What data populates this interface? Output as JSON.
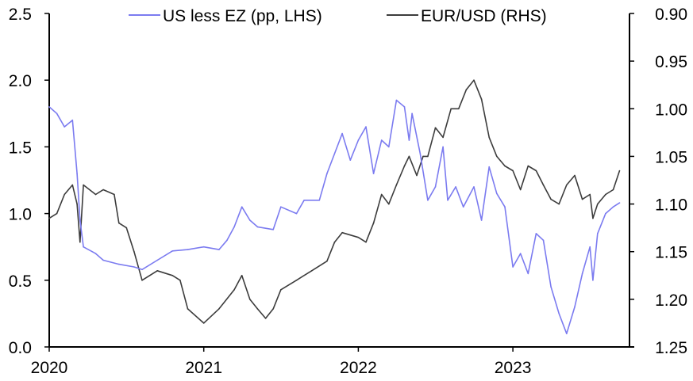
{
  "chart_data": {
    "type": "line",
    "title": "",
    "xlabel": "",
    "x_ticks": [
      "2020",
      "2021",
      "2022",
      "2023"
    ],
    "x_range": [
      "2020-01-01",
      "2023-10-15"
    ],
    "y_left": {
      "label": "",
      "range": [
        0,
        2.5
      ],
      "ticks": [
        "0.0",
        "0.5",
        "1.0",
        "1.5",
        "2.0",
        "2.5"
      ]
    },
    "y_right": {
      "label": "",
      "range": [
        0.9,
        1.25
      ],
      "inverted": true,
      "ticks": [
        "0.90",
        "0.95",
        "1.00",
        "1.05",
        "1.10",
        "1.15",
        "1.20",
        "1.25"
      ]
    },
    "grid": false,
    "legend_position": "top",
    "series": [
      {
        "name": "US less EZ (pp, LHS)",
        "axis": "left",
        "color": "#7b7bf0",
        "points": [
          [
            "2020-01-01",
            1.8
          ],
          [
            "2020-01-19",
            1.75
          ],
          [
            "2020-02-06",
            1.65
          ],
          [
            "2020-02-25",
            1.7
          ],
          [
            "2020-03-07",
            1.3
          ],
          [
            "2020-03-14",
            0.95
          ],
          [
            "2020-03-22",
            0.75
          ],
          [
            "2020-04-20",
            0.7
          ],
          [
            "2020-05-08",
            0.65
          ],
          [
            "2020-06-14",
            0.62
          ],
          [
            "2020-07-20",
            0.6
          ],
          [
            "2020-08-08",
            0.58
          ],
          [
            "2020-09-13",
            0.65
          ],
          [
            "2020-10-19",
            0.72
          ],
          [
            "2020-11-24",
            0.73
          ],
          [
            "2021-01-01",
            0.75
          ],
          [
            "2021-02-06",
            0.73
          ],
          [
            "2021-02-25",
            0.8
          ],
          [
            "2021-03-14",
            0.9
          ],
          [
            "2021-04-01",
            1.05
          ],
          [
            "2021-04-20",
            0.95
          ],
          [
            "2021-05-08",
            0.9
          ],
          [
            "2021-06-14",
            0.88
          ],
          [
            "2021-07-02",
            1.05
          ],
          [
            "2021-08-08",
            1.0
          ],
          [
            "2021-08-26",
            1.1
          ],
          [
            "2021-10-01",
            1.1
          ],
          [
            "2021-10-19",
            1.3
          ],
          [
            "2021-11-24",
            1.6
          ],
          [
            "2021-12-13",
            1.4
          ],
          [
            "2022-01-01",
            1.55
          ],
          [
            "2022-01-19",
            1.65
          ],
          [
            "2022-02-06",
            1.3
          ],
          [
            "2022-02-25",
            1.55
          ],
          [
            "2022-03-14",
            1.5
          ],
          [
            "2022-04-01",
            1.85
          ],
          [
            "2022-04-20",
            1.8
          ],
          [
            "2022-05-01",
            1.55
          ],
          [
            "2022-05-08",
            1.75
          ],
          [
            "2022-05-27",
            1.45
          ],
          [
            "2022-06-14",
            1.1
          ],
          [
            "2022-07-02",
            1.2
          ],
          [
            "2022-07-20",
            1.5
          ],
          [
            "2022-07-31",
            1.1
          ],
          [
            "2022-08-19",
            1.2
          ],
          [
            "2022-09-06",
            1.05
          ],
          [
            "2022-10-01",
            1.2
          ],
          [
            "2022-10-19",
            0.95
          ],
          [
            "2022-11-06",
            1.35
          ],
          [
            "2022-11-24",
            1.15
          ],
          [
            "2022-12-13",
            1.05
          ],
          [
            "2023-01-01",
            0.6
          ],
          [
            "2023-01-19",
            0.7
          ],
          [
            "2023-02-06",
            0.55
          ],
          [
            "2023-02-25",
            0.85
          ],
          [
            "2023-03-14",
            0.8
          ],
          [
            "2023-04-01",
            0.45
          ],
          [
            "2023-04-20",
            0.25
          ],
          [
            "2023-05-08",
            0.1
          ],
          [
            "2023-05-27",
            0.3
          ],
          [
            "2023-06-14",
            0.55
          ],
          [
            "2023-07-02",
            0.75
          ],
          [
            "2023-07-09",
            0.5
          ],
          [
            "2023-07-20",
            0.85
          ],
          [
            "2023-08-08",
            1.0
          ],
          [
            "2023-08-26",
            1.05
          ],
          [
            "2023-09-10",
            1.08
          ]
        ]
      },
      {
        "name": "EUR/USD (RHS)",
        "axis": "right",
        "color": "#3c3c3c",
        "points": [
          [
            "2020-01-01",
            1.115
          ],
          [
            "2020-01-19",
            1.11
          ],
          [
            "2020-02-06",
            1.09
          ],
          [
            "2020-02-25",
            1.08
          ],
          [
            "2020-03-07",
            1.1
          ],
          [
            "2020-03-14",
            1.14
          ],
          [
            "2020-03-22",
            1.08
          ],
          [
            "2020-04-20",
            1.09
          ],
          [
            "2020-05-08",
            1.085
          ],
          [
            "2020-06-03",
            1.09
          ],
          [
            "2020-06-14",
            1.12
          ],
          [
            "2020-07-02",
            1.125
          ],
          [
            "2020-07-20",
            1.15
          ],
          [
            "2020-08-08",
            1.18
          ],
          [
            "2020-08-26",
            1.175
          ],
          [
            "2020-09-13",
            1.17
          ],
          [
            "2020-10-19",
            1.175
          ],
          [
            "2020-11-06",
            1.18
          ],
          [
            "2020-11-24",
            1.21
          ],
          [
            "2021-01-01",
            1.225
          ],
          [
            "2021-02-06",
            1.21
          ],
          [
            "2021-03-14",
            1.19
          ],
          [
            "2021-04-01",
            1.175
          ],
          [
            "2021-04-20",
            1.2
          ],
          [
            "2021-05-08",
            1.21
          ],
          [
            "2021-05-27",
            1.22
          ],
          [
            "2021-06-14",
            1.21
          ],
          [
            "2021-07-02",
            1.19
          ],
          [
            "2021-08-08",
            1.18
          ],
          [
            "2021-09-13",
            1.17
          ],
          [
            "2021-10-19",
            1.16
          ],
          [
            "2021-11-06",
            1.14
          ],
          [
            "2021-11-24",
            1.13
          ],
          [
            "2022-01-01",
            1.135
          ],
          [
            "2022-01-19",
            1.14
          ],
          [
            "2022-02-06",
            1.12
          ],
          [
            "2022-02-25",
            1.09
          ],
          [
            "2022-03-14",
            1.1
          ],
          [
            "2022-04-01",
            1.08
          ],
          [
            "2022-04-20",
            1.06
          ],
          [
            "2022-05-01",
            1.05
          ],
          [
            "2022-05-19",
            1.07
          ],
          [
            "2022-06-03",
            1.05
          ],
          [
            "2022-06-14",
            1.05
          ],
          [
            "2022-07-02",
            1.02
          ],
          [
            "2022-07-20",
            1.03
          ],
          [
            "2022-08-08",
            1.0
          ],
          [
            "2022-08-26",
            1.0
          ],
          [
            "2022-09-13",
            0.98
          ],
          [
            "2022-10-01",
            0.97
          ],
          [
            "2022-10-19",
            0.99
          ],
          [
            "2022-11-06",
            1.03
          ],
          [
            "2022-11-24",
            1.05
          ],
          [
            "2022-12-13",
            1.06
          ],
          [
            "2023-01-01",
            1.065
          ],
          [
            "2023-01-19",
            1.085
          ],
          [
            "2023-02-06",
            1.06
          ],
          [
            "2023-02-25",
            1.065
          ],
          [
            "2023-03-14",
            1.08
          ],
          [
            "2023-04-01",
            1.095
          ],
          [
            "2023-04-20",
            1.1
          ],
          [
            "2023-05-08",
            1.08
          ],
          [
            "2023-05-27",
            1.07
          ],
          [
            "2023-06-14",
            1.095
          ],
          [
            "2023-07-02",
            1.09
          ],
          [
            "2023-07-09",
            1.115
          ],
          [
            "2023-07-20",
            1.1
          ],
          [
            "2023-08-08",
            1.09
          ],
          [
            "2023-08-26",
            1.085
          ],
          [
            "2023-09-10",
            1.065
          ]
        ]
      }
    ]
  }
}
